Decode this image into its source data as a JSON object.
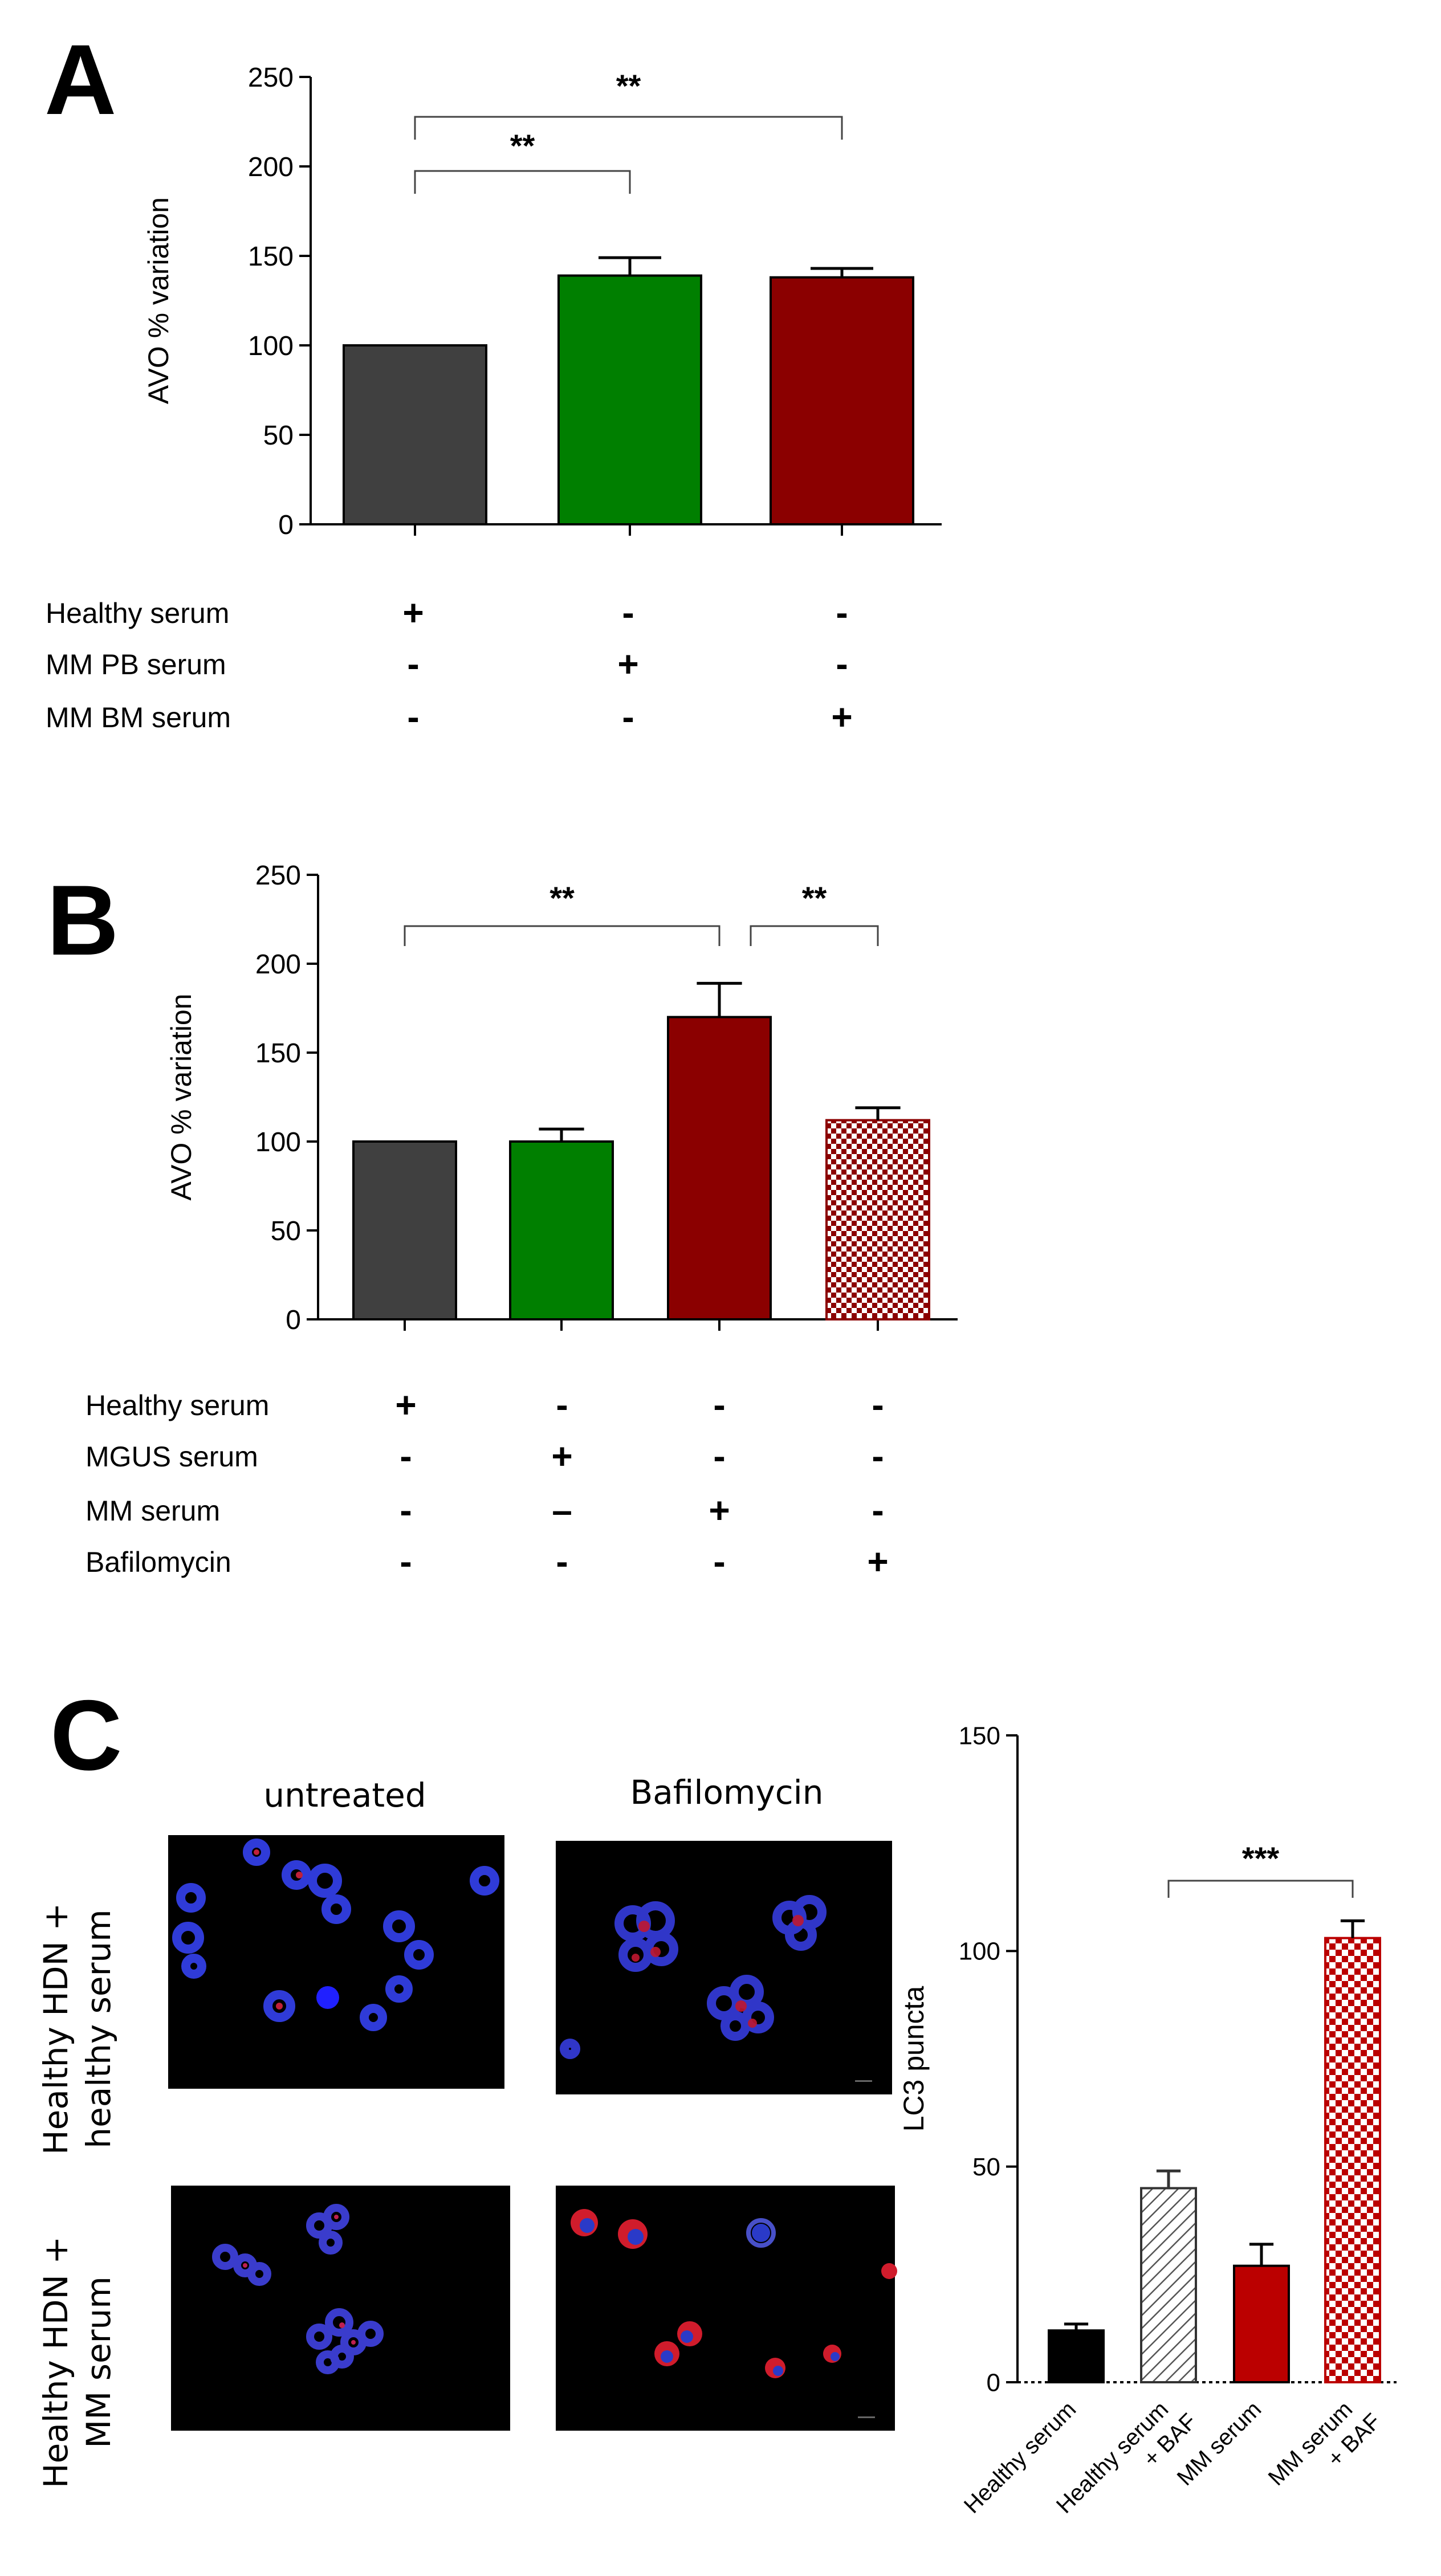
{
  "panels": {
    "A": {
      "letter": "A"
    },
    "B": {
      "letter": "B"
    },
    "C": {
      "letter": "C"
    }
  },
  "chart_data": [
    {
      "id": "A",
      "type": "bar",
      "ylabel": "AVO % variation",
      "ylim": [
        0,
        250
      ],
      "yticks": [
        0,
        50,
        100,
        150,
        200,
        250
      ],
      "series": [
        {
          "values": [
            100,
            139,
            138
          ],
          "errors": [
            0,
            10,
            5
          ],
          "fills": [
            "#404040",
            "#007f00",
            "#8b0000"
          ],
          "patterns": [
            "solid",
            "solid",
            "solid"
          ]
        }
      ],
      "significance": [
        {
          "from": 0,
          "to": 1,
          "label": "**"
        },
        {
          "from": 0,
          "to": 2,
          "label": "**"
        }
      ],
      "conditions": {
        "rows": [
          "Healthy serum",
          "MM PB serum",
          "MM BM serum"
        ],
        "values": [
          [
            "+",
            "-",
            "-"
          ],
          [
            "-",
            "+",
            "-"
          ],
          [
            "-",
            "-",
            "+"
          ]
        ]
      }
    },
    {
      "id": "B",
      "type": "bar",
      "ylabel": "AVO % variation",
      "ylim": [
        0,
        250
      ],
      "yticks": [
        0,
        50,
        100,
        150,
        200,
        250
      ],
      "series": [
        {
          "values": [
            100,
            100,
            170,
            112
          ],
          "errors": [
            0,
            7,
            19,
            7
          ],
          "fills": [
            "#404040",
            "#007f00",
            "#8b0000",
            "#8b0000"
          ],
          "patterns": [
            "solid",
            "solid",
            "solid",
            "checker"
          ]
        }
      ],
      "significance": [
        {
          "from": 0,
          "to": 2,
          "label": "**"
        },
        {
          "from": 2,
          "to": 3,
          "label": "**"
        }
      ],
      "conditions": {
        "rows": [
          "Healthy serum",
          "MGUS serum",
          "MM serum",
          "Bafilomycin"
        ],
        "values": [
          [
            "+",
            "-",
            "-",
            "-"
          ],
          [
            "-",
            "+",
            "-",
            "-"
          ],
          [
            "-",
            "–",
            "+",
            "-"
          ],
          [
            "-",
            "-",
            "-",
            "+"
          ]
        ]
      }
    },
    {
      "id": "C",
      "type": "bar",
      "ylabel": "LC3 puncta",
      "ylim": [
        0,
        150
      ],
      "yticks": [
        0,
        50,
        100,
        150
      ],
      "categories": [
        "Healthy serum",
        "Healthy serum + BAF",
        "MM serum",
        "MM serum + BAF"
      ],
      "series": [
        {
          "values": [
            12,
            45,
            27,
            103
          ],
          "errors": [
            1.5,
            4,
            5,
            4
          ],
          "fills": [
            "#000000",
            "#ffffff",
            "#bb0000",
            "#bb0000"
          ],
          "patterns": [
            "solid",
            "hatch",
            "solid",
            "checker"
          ]
        }
      ],
      "significance": [
        {
          "from": 1,
          "to": 3,
          "label": "***"
        }
      ]
    }
  ],
  "micrographs": {
    "column_labels": [
      "untreated",
      "Bafilomycin"
    ],
    "row_labels": [
      [
        "Healthy HDN +",
        "healthy serum"
      ],
      [
        "Healthy HDN +",
        "MM serum"
      ]
    ]
  }
}
